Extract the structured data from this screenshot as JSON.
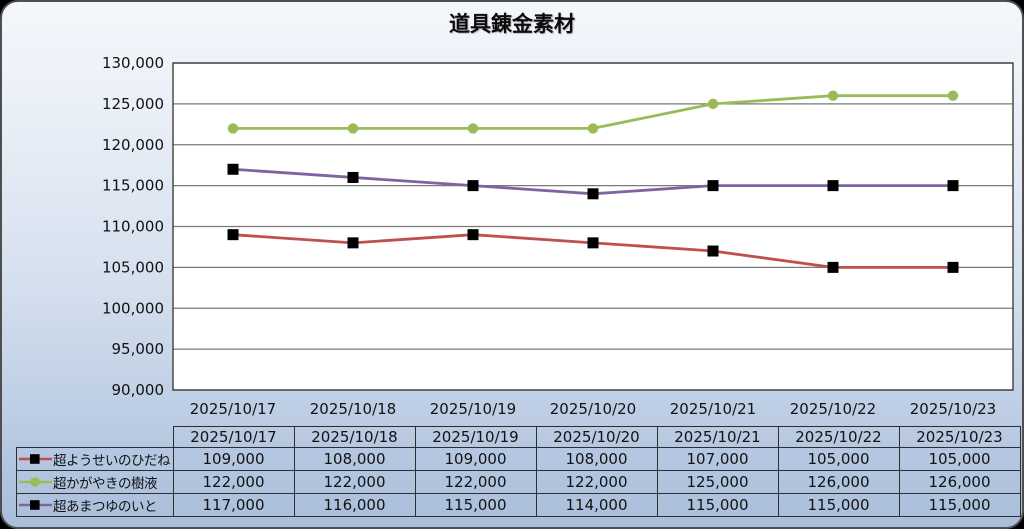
{
  "title": "道具錬金素材",
  "chart_data": {
    "type": "line",
    "title": "道具錬金素材",
    "x": [
      "2025/10/17",
      "2025/10/18",
      "2025/10/19",
      "2025/10/20",
      "2025/10/21",
      "2025/10/22",
      "2025/10/23"
    ],
    "series": [
      {
        "name": "超ようせいのひだね",
        "color": "#c0504d",
        "marker": "square",
        "marker_color": "#000000",
        "values": [
          109000,
          108000,
          109000,
          108000,
          107000,
          105000,
          105000
        ]
      },
      {
        "name": "超かがやきの樹液",
        "color": "#9bbb59",
        "marker": "circle",
        "marker_color": "#9bbb59",
        "values": [
          122000,
          122000,
          122000,
          122000,
          125000,
          126000,
          126000
        ]
      },
      {
        "name": "超あまつゆのいと",
        "color": "#8064a2",
        "marker": "square",
        "marker_color": "#000000",
        "values": [
          117000,
          116000,
          115000,
          114000,
          115000,
          115000,
          115000
        ]
      }
    ],
    "ylim": [
      90000,
      130000
    ],
    "ytick_step": 5000,
    "ytick_labels_top_down": [
      "130,000",
      "125,000",
      "120,000",
      "115,000",
      "110,000",
      "105,000",
      "100,000",
      "95,000",
      "90,000"
    ],
    "grid": true,
    "legend_position": "table-left-column"
  },
  "table": {
    "headers": [
      "2025/10/17",
      "2025/10/18",
      "2025/10/19",
      "2025/10/20",
      "2025/10/21",
      "2025/10/22",
      "2025/10/23"
    ],
    "rows": [
      {
        "label": "超ようせいのひだね",
        "values": [
          "109,000",
          "108,000",
          "109,000",
          "108,000",
          "107,000",
          "105,000",
          "105,000"
        ]
      },
      {
        "label": "超かがやきの樹液",
        "values": [
          "122,000",
          "122,000",
          "122,000",
          "122,000",
          "125,000",
          "126,000",
          "126,000"
        ]
      },
      {
        "label": "超あまつゆのいと",
        "values": [
          "117,000",
          "116,000",
          "115,000",
          "114,000",
          "115,000",
          "115,000",
          "115,000"
        ]
      }
    ]
  },
  "colors": {
    "series_red": "#c0504d",
    "series_green": "#9bbb59",
    "series_purple": "#8064a2",
    "grid_line": "#7a7a7a",
    "plot_border": "#3f3f3f",
    "plot_fill": "#ffffff",
    "text": "#121212",
    "card_border": "#4f4f4f",
    "bg_top": "#f4f7fb",
    "bg_bottom": "#a9bedb"
  }
}
